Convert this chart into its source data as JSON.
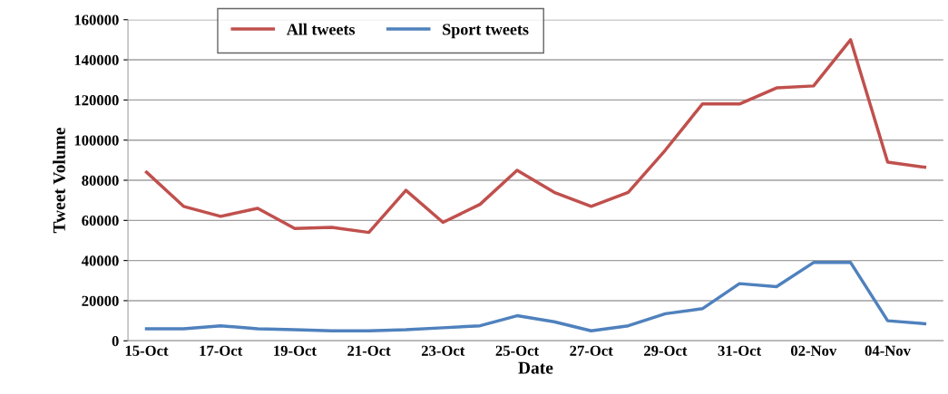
{
  "chart_data": {
    "type": "line",
    "xlabel": "Date",
    "ylabel": "Tweet Volume",
    "categories": [
      "15-Oct",
      null,
      "17-Oct",
      null,
      "19-Oct",
      null,
      "21-Oct",
      null,
      "23-Oct",
      null,
      "25-Oct",
      null,
      "27-Oct",
      null,
      "29-Oct",
      null,
      "31-Oct",
      null,
      "02-Nov",
      null,
      "04-Nov",
      null
    ],
    "series": [
      {
        "name": "All tweets",
        "color": "#c0504d",
        "values": [
          84000,
          67000,
          62000,
          66000,
          56000,
          56500,
          54000,
          75000,
          59000,
          68000,
          85000,
          74000,
          67000,
          74000,
          95000,
          118000,
          118000,
          126000,
          127000,
          150000,
          89000,
          86500
        ]
      },
      {
        "name": "Sport tweets",
        "color": "#4f81bd",
        "values": [
          6000,
          6000,
          7500,
          6000,
          5500,
          5000,
          5000,
          5500,
          6500,
          7500,
          12500,
          9500,
          5000,
          7500,
          13500,
          16000,
          28500,
          27000,
          39000,
          39000,
          10000,
          8500
        ]
      }
    ],
    "ylim": [
      0,
      160000
    ],
    "yticks": [
      0,
      20000,
      40000,
      60000,
      80000,
      100000,
      120000,
      140000,
      160000
    ],
    "grid": "y",
    "legend": "top left",
    "marker": "none",
    "line_style": "solid"
  }
}
